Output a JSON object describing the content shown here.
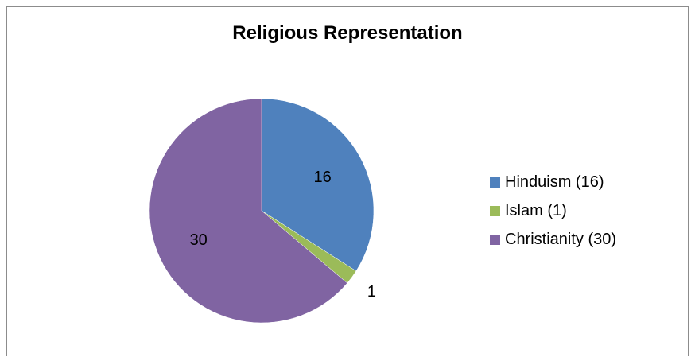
{
  "chart_data": {
    "type": "pie",
    "title": "Religious Representation",
    "categories": [
      "Hinduism",
      "Islam",
      "Christianity"
    ],
    "values": [
      16,
      1,
      30
    ],
    "data_labels": [
      "16",
      "1",
      "30"
    ],
    "legend": [
      "Hinduism (16)",
      "Islam (1)",
      "Christianity (30)"
    ],
    "colors": [
      "#4f81bd",
      "#9bbb59",
      "#8064a2"
    ],
    "legend_position": "right"
  }
}
